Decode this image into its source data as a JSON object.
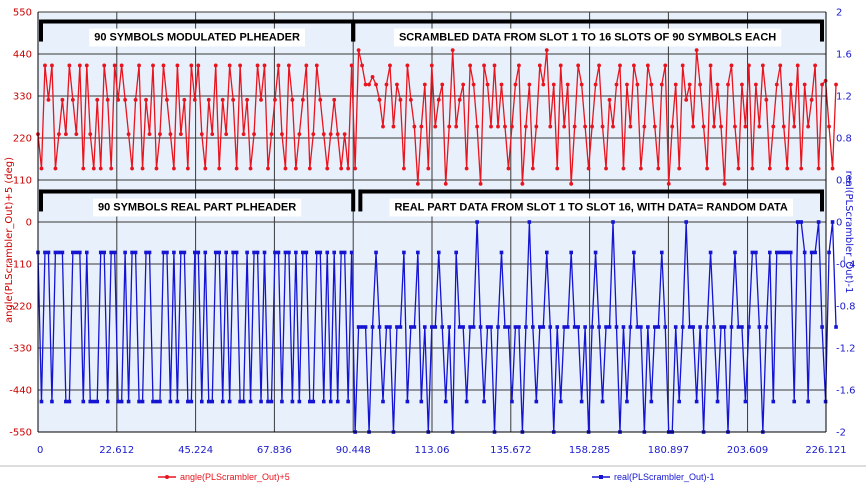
{
  "chart_data": {
    "type": "line",
    "background": "#e8f0fb",
    "x": {
      "range": [
        0,
        226.121
      ],
      "ticks": [
        0,
        22.612,
        45.224,
        67.836,
        90.448,
        113.06,
        135.672,
        158.285,
        180.897,
        203.609,
        226.121
      ],
      "tick_labels": [
        "0",
        "22.612",
        "45.224",
        "67.836",
        "90.448",
        "113.06",
        "135.672",
        "158.285",
        "180.897",
        "203.609",
        "226.121"
      ]
    },
    "y_left": {
      "label": "angle(PLScrambler_Out)+5 (deg)",
      "range": [
        -550,
        550
      ],
      "ticks": [
        -550,
        -440,
        -330,
        -220,
        -110,
        0,
        110,
        220,
        330,
        440,
        550
      ],
      "tick_labels": [
        "-550",
        "-440",
        "-330",
        "-220",
        "-110",
        "0",
        "110",
        "220",
        "330",
        "440",
        "550"
      ],
      "color": "#cc0000"
    },
    "y_right": {
      "label": "real(PLScrambler_Out)-1",
      "range": [
        -2,
        2
      ],
      "ticks": [
        -2,
        -1.6,
        -1.2,
        -0.8,
        -0.4,
        0,
        0.4,
        0.8,
        1.2,
        1.6,
        2
      ],
      "tick_labels": [
        "-2",
        "-1.6",
        "-1.2",
        "-0.8",
        "-0.4",
        "0",
        "0.4",
        "0.8",
        "1.2",
        "1.6",
        "2"
      ],
      "color": "#1a1acc"
    },
    "grid": true,
    "legend_position": "bottom",
    "series": [
      {
        "name": "angle(PLScrambler_Out)+5",
        "axis": "left",
        "color": "#e8141e",
        "marker": "circle",
        "x_start": 0,
        "x_step": 1,
        "values": [
          230,
          140,
          410,
          320,
          410,
          140,
          230,
          320,
          230,
          410,
          320,
          230,
          410,
          140,
          410,
          230,
          140,
          320,
          140,
          410,
          320,
          140,
          410,
          320,
          410,
          320,
          230,
          140,
          320,
          410,
          140,
          320,
          230,
          410,
          140,
          230,
          410,
          320,
          230,
          140,
          410,
          230,
          320,
          140,
          410,
          320,
          410,
          230,
          140,
          320,
          230,
          410,
          140,
          320,
          230,
          410,
          320,
          140,
          410,
          230,
          320,
          140,
          230,
          410,
          320,
          410,
          140,
          230,
          320,
          410,
          230,
          140,
          410,
          320,
          140,
          230,
          320,
          410,
          140,
          230,
          410,
          320,
          230,
          140,
          230,
          320,
          230,
          140,
          230,
          140,
          410,
          140,
          450,
          410,
          360,
          360,
          380,
          360,
          320,
          250,
          360,
          410,
          250,
          360,
          320,
          140,
          410,
          320,
          250,
          100,
          250,
          360,
          140,
          410,
          250,
          320,
          360,
          100,
          250,
          450,
          250,
          320,
          360,
          140,
          410,
          360,
          250,
          100,
          410,
          360,
          250,
          410,
          250,
          360,
          250,
          140,
          250,
          360,
          410,
          100,
          250,
          360,
          140,
          250,
          410,
          360,
          450,
          250,
          360,
          140,
          410,
          250,
          360,
          100,
          250,
          410,
          360,
          250,
          140,
          250,
          360,
          410,
          250,
          140,
          320,
          250,
          360,
          410,
          140,
          360,
          250,
          410,
          360,
          140,
          250,
          410,
          360,
          250,
          140,
          360,
          410,
          100,
          250,
          360,
          140,
          410,
          320,
          360,
          250,
          450,
          360,
          250,
          140,
          410,
          250,
          360,
          250,
          100,
          360,
          410,
          250,
          140,
          360,
          250,
          410,
          140,
          360,
          250,
          410,
          320,
          140,
          250,
          360,
          410,
          250,
          140,
          360,
          250,
          410,
          140,
          360,
          250,
          320,
          410,
          140,
          360,
          370,
          250,
          140,
          360
        ]
      },
      {
        "name": "real(PLScrambler_Out)-1",
        "axis": "right",
        "color": "#1414d2",
        "marker": "square",
        "x_start": 0,
        "x_step": 1,
        "values": [
          -0.29,
          -1.71,
          -0.29,
          -0.29,
          -1.71,
          -0.29,
          -0.29,
          -0.29,
          -1.71,
          -1.71,
          -0.29,
          -0.29,
          -0.29,
          -1.71,
          -0.29,
          -1.71,
          -1.71,
          -1.71,
          -0.29,
          -0.29,
          -1.71,
          -0.29,
          -0.29,
          -1.71,
          -1.71,
          -0.29,
          -1.71,
          -0.29,
          -0.29,
          -1.71,
          -1.71,
          -0.29,
          -0.29,
          -1.71,
          -1.71,
          -1.71,
          -0.29,
          -0.29,
          -1.71,
          -0.29,
          -1.71,
          -0.29,
          -0.29,
          -1.71,
          -1.71,
          -0.29,
          -0.29,
          -1.71,
          -0.29,
          -1.71,
          -1.71,
          -0.29,
          -0.29,
          -1.71,
          -0.29,
          -1.71,
          -0.29,
          -0.29,
          -1.71,
          -1.71,
          -0.29,
          -1.71,
          -0.29,
          -0.29,
          -1.71,
          -0.29,
          -1.71,
          -1.71,
          -0.29,
          -0.29,
          -1.71,
          -0.29,
          -0.29,
          -1.71,
          -0.29,
          -1.71,
          -0.29,
          -0.29,
          -1.71,
          -1.71,
          -0.29,
          -0.29,
          -1.71,
          -0.29,
          -1.71,
          -0.29,
          -1.71,
          -0.29,
          -0.29,
          -1.71,
          -0.29,
          -2.0,
          -1.0,
          -1.0,
          -1.0,
          -2.0,
          -1.0,
          -0.29,
          -1.0,
          -1.71,
          -1.0,
          -1.0,
          -2.0,
          -1.0,
          -1.0,
          -0.29,
          -1.71,
          -1.0,
          -1.0,
          -0.29,
          -1.71,
          -1.0,
          -2.0,
          -1.0,
          -1.0,
          -0.29,
          -1.0,
          -1.71,
          -1.0,
          -2.0,
          -0.29,
          -1.0,
          -1.0,
          -1.71,
          -1.0,
          -1.0,
          0.0,
          -1.0,
          -1.71,
          -1.0,
          -1.0,
          -2.0,
          -1.0,
          -0.29,
          -1.0,
          -1.0,
          -1.71,
          -1.0,
          -1.0,
          -2.0,
          -1.0,
          0.0,
          -1.0,
          -1.71,
          -1.0,
          -1.0,
          -0.29,
          -1.0,
          -2.0,
          -1.0,
          -1.71,
          -1.0,
          -1.0,
          -0.29,
          -1.0,
          -1.0,
          -1.71,
          -1.0,
          -2.0,
          -1.0,
          -0.29,
          -1.0,
          -1.71,
          -1.0,
          -1.0,
          0.0,
          -1.0,
          -2.0,
          -1.0,
          -1.71,
          -1.0,
          -0.29,
          -1.0,
          -1.0,
          -2.0,
          -1.0,
          -1.71,
          -1.0,
          -1.0,
          -0.29,
          -1.0,
          -2.0,
          -2.0,
          -1.0,
          -1.71,
          -1.0,
          0.0,
          -1.0,
          -1.0,
          -1.71,
          -1.0,
          -2.0,
          -1.0,
          -0.29,
          -1.0,
          -1.71,
          -1.0,
          -1.0,
          -2.0,
          -1.0,
          -0.29,
          -1.0,
          -1.0,
          -1.71,
          -1.0,
          -0.29,
          -0.29,
          -1.0,
          -2.0,
          -1.0,
          -0.29,
          -1.71,
          -0.29,
          -0.29,
          -0.29,
          -0.29,
          -0.29,
          -1.71,
          0.0,
          0.0,
          -0.29,
          -1.71,
          -0.29,
          -0.29,
          0.0,
          -1.0,
          -1.71,
          -0.29,
          0.0,
          -1.0
        ]
      }
    ],
    "annotations": [
      {
        "id": "top-left",
        "text": "90 SYMBOLS MODULATED PLHEADER",
        "x_from": 0,
        "x_to": 90.448,
        "y": 525,
        "axis": "left"
      },
      {
        "id": "top-right",
        "text": "SCRAMBLED DATA FROM SLOT 1 TO 16 SLOTS OF 90 SYMBOLS EACH",
        "x_from": 90.448,
        "x_to": 226.121,
        "y": 525,
        "axis": "left"
      },
      {
        "id": "bottom-left",
        "text": "90 SYMBOLS REAL PART PLHEADER",
        "x_from": 0,
        "x_to": 90.448,
        "y": 80,
        "axis": "left"
      },
      {
        "id": "bottom-right",
        "text": "REAL PART DATA FROM SLOT 1 TO SLOT 16, WITH DATA= RANDOM DATA",
        "x_from": 92.5,
        "x_to": 226.121,
        "y": 80,
        "axis": "left"
      }
    ]
  }
}
